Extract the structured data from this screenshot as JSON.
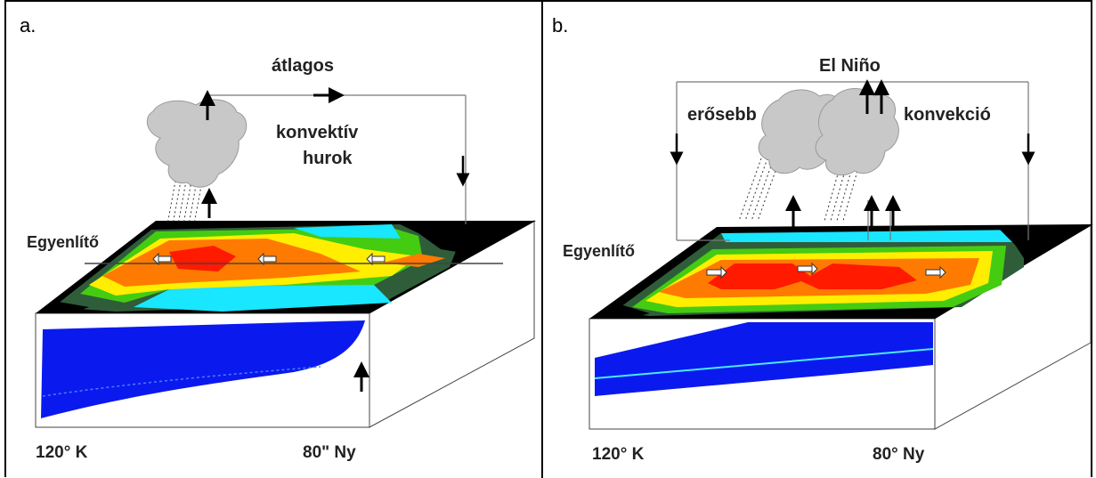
{
  "panels": [
    {
      "letter": "a.",
      "title": "átlagos",
      "loop_line1": "konvektív",
      "loop_line2": "hurok",
      "equator": "Egyenlítő",
      "lon_left": "120° K",
      "lon_right": "80\" Ny"
    },
    {
      "letter": "b.",
      "title": "El Niño",
      "left_label": "erősebb",
      "right_label": "konvekció",
      "equator": "Egyenlítő",
      "lon_left": "120° K",
      "lon_right": "80° Ny"
    }
  ],
  "colors": {
    "warm_core": "#ff1a00",
    "orange": "#ff7a00",
    "yellow": "#ffee00",
    "green": "#44cc11",
    "dark_green": "#2f5d3a",
    "cyan": "#19e6ff",
    "land": "#000000",
    "thermocline": "#0a1aee",
    "cloud": "#c8c8c8"
  }
}
